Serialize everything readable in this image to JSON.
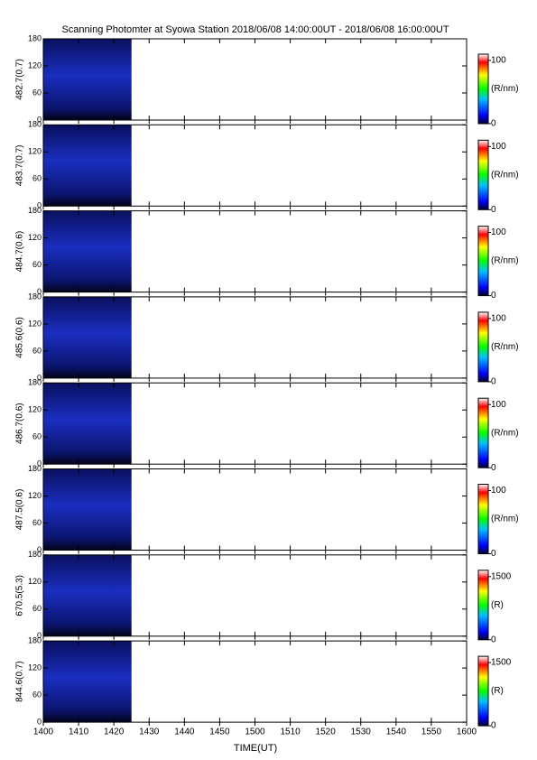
{
  "title": "Scanning Photomter at Syowa Station 2018/06/08 14:00:00UT - 2018/06/08 16:00:00UT",
  "xlabel": "TIME(UT)",
  "xlim": [
    0,
    120
  ],
  "xticks": [
    {
      "value": 0,
      "label": "1400"
    },
    {
      "value": 10,
      "label": "1410"
    },
    {
      "value": 20,
      "label": "1420"
    },
    {
      "value": 30,
      "label": "1430"
    },
    {
      "value": 40,
      "label": "1440"
    },
    {
      "value": 50,
      "label": "1450"
    },
    {
      "value": 60,
      "label": "1500"
    },
    {
      "value": 70,
      "label": "1510"
    },
    {
      "value": 80,
      "label": "1520"
    },
    {
      "value": 90,
      "label": "1530"
    },
    {
      "value": 100,
      "label": "1540"
    },
    {
      "value": 110,
      "label": "1550"
    },
    {
      "value": 120,
      "label": "1600"
    }
  ],
  "chart_data": [
    {
      "type": "heatmap",
      "ylabel": "482.7(0.7)",
      "ylim": [
        0,
        180
      ],
      "yticks": [
        0,
        60,
        120,
        180
      ],
      "x": [
        0,
        25
      ],
      "colorbar": {
        "label": "(R/nm)",
        "lim": [
          0,
          110
        ],
        "ticks": [
          0,
          100
        ]
      }
    },
    {
      "type": "heatmap",
      "ylabel": "483.7(0.7)",
      "ylim": [
        0,
        180
      ],
      "yticks": [
        0,
        60,
        120,
        180
      ],
      "x": [
        0,
        25
      ],
      "colorbar": {
        "label": "(R/nm)",
        "lim": [
          0,
          110
        ],
        "ticks": [
          0,
          100
        ]
      }
    },
    {
      "type": "heatmap",
      "ylabel": "484.7(0.6)",
      "ylim": [
        0,
        180
      ],
      "yticks": [
        0,
        60,
        120,
        180
      ],
      "x": [
        0,
        25
      ],
      "colorbar": {
        "label": "(R/nm)",
        "lim": [
          0,
          110
        ],
        "ticks": [
          0,
          100
        ]
      }
    },
    {
      "type": "heatmap",
      "ylabel": "485.6(0.6)",
      "ylim": [
        0,
        180
      ],
      "yticks": [
        0,
        60,
        120,
        180
      ],
      "x": [
        0,
        25
      ],
      "colorbar": {
        "label": "(R/nm)",
        "lim": [
          0,
          110
        ],
        "ticks": [
          0,
          100
        ]
      }
    },
    {
      "type": "heatmap",
      "ylabel": "486.7(0.6)",
      "ylim": [
        0,
        180
      ],
      "yticks": [
        0,
        60,
        120,
        180
      ],
      "x": [
        0,
        25
      ],
      "colorbar": {
        "label": "(R/nm)",
        "lim": [
          0,
          110
        ],
        "ticks": [
          0,
          100
        ]
      }
    },
    {
      "type": "heatmap",
      "ylabel": "487.5(0.6)",
      "ylim": [
        0,
        180
      ],
      "yticks": [
        0,
        60,
        120,
        180
      ],
      "x": [
        0,
        25
      ],
      "colorbar": {
        "label": "(R/nm)",
        "lim": [
          0,
          110
        ],
        "ticks": [
          0,
          100
        ]
      }
    },
    {
      "type": "heatmap",
      "ylabel": "670.5(5.3)",
      "ylim": [
        0,
        180
      ],
      "yticks": [
        0,
        60,
        120,
        180
      ],
      "x": [
        0,
        25
      ],
      "colorbar": {
        "label": "(R)",
        "lim": [
          0,
          1650
        ],
        "ticks": [
          0,
          1500
        ]
      }
    },
    {
      "type": "heatmap",
      "ylabel": "844.6(0.7)",
      "ylim": [
        0,
        180
      ],
      "yticks": [
        0,
        60,
        120,
        180
      ],
      "x": [
        0,
        25
      ],
      "colorbar": {
        "label": "(R)",
        "lim": [
          0,
          1650
        ],
        "ticks": [
          0,
          1500
        ]
      }
    }
  ]
}
